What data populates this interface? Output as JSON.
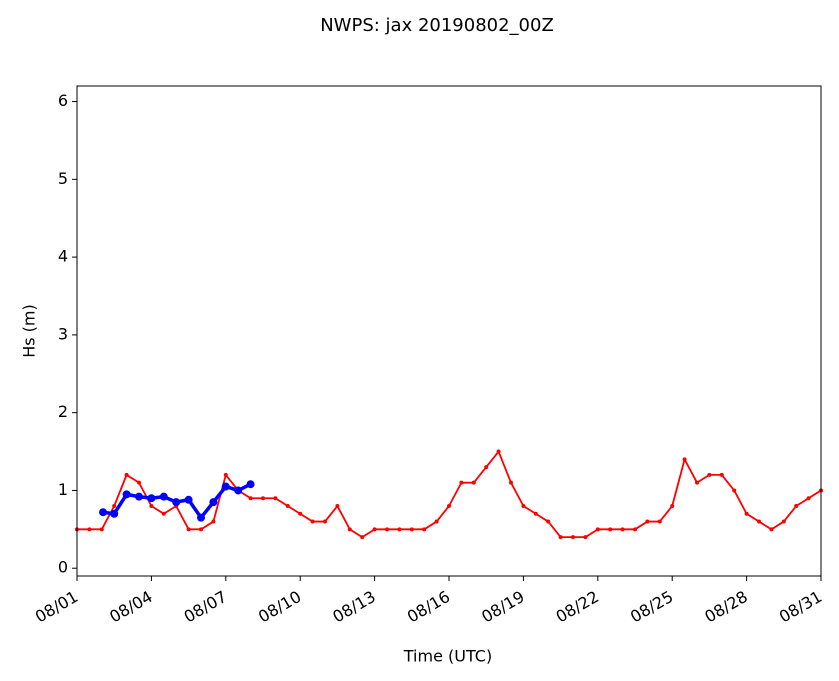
{
  "chart_data": {
    "type": "line",
    "title": "NWPS: jax 20190802_00Z",
    "x_label": "Time (UTC)",
    "y_label": "Hs (m)",
    "xlim": [
      1,
      31
    ],
    "xticks": [
      {
        "value": 1,
        "label": "08/01"
      },
      {
        "value": 4,
        "label": "08/04"
      },
      {
        "value": 7,
        "label": "08/07"
      },
      {
        "value": 10,
        "label": "08/10"
      },
      {
        "value": 13,
        "label": "08/13"
      },
      {
        "value": 16,
        "label": "08/16"
      },
      {
        "value": 19,
        "label": "08/19"
      },
      {
        "value": 22,
        "label": "08/22"
      },
      {
        "value": 25,
        "label": "08/25"
      },
      {
        "value": 28,
        "label": "08/28"
      },
      {
        "value": 31,
        "label": "08/31"
      }
    ],
    "ylim": [
      -0.1,
      6.2
    ],
    "yticks": [
      0,
      1,
      2,
      3,
      4,
      5,
      6
    ],
    "series": [
      {
        "color": "#ff0000",
        "marker_size": 2,
        "x": [
          1,
          1.5,
          2,
          2.5,
          3,
          3.5,
          4,
          4.5,
          5,
          5.5,
          6,
          6.5,
          7,
          7.5,
          8,
          8.5,
          9,
          9.5,
          10,
          10.5,
          11,
          11.5,
          12,
          12.5,
          13,
          13.5,
          14,
          14.5,
          15,
          15.5,
          16,
          16.5,
          17,
          17.5,
          18,
          18.5,
          19,
          19.5,
          20,
          20.5,
          21,
          21.5,
          22,
          22.5,
          23,
          23.5,
          24,
          24.5,
          25,
          25.5,
          26,
          26.5,
          27,
          27.5,
          28,
          28.5,
          29,
          29.5,
          30,
          30.5,
          31
        ],
        "values": [
          0.5,
          0.5,
          0.5,
          0.8,
          1.2,
          1.1,
          0.8,
          0.7,
          0.8,
          0.5,
          0.5,
          0.6,
          1.2,
          1.0,
          0.9,
          0.9,
          0.9,
          0.8,
          0.7,
          0.6,
          0.6,
          0.8,
          0.5,
          0.4,
          0.5,
          0.5,
          0.5,
          0.5,
          0.5,
          0.6,
          0.8,
          1.1,
          1.1,
          1.3,
          1.5,
          1.1,
          0.8,
          0.7,
          0.6,
          0.4,
          0.4,
          0.4,
          0.5,
          0.5,
          0.5,
          0.5,
          0.6,
          0.6,
          0.8,
          1.4,
          1.1,
          1.2,
          1.2,
          1.0,
          0.7,
          0.6,
          0.5,
          0.6,
          0.8,
          0.9,
          1.0
        ]
      },
      {
        "color": "#0000ff",
        "marker_size": 4,
        "x": [
          2.05,
          2.5,
          3,
          3.5,
          4,
          4.5,
          5,
          5.5,
          6,
          6.5,
          7,
          7.5,
          8
        ],
        "values": [
          0.72,
          0.7,
          0.95,
          0.92,
          0.9,
          0.92,
          0.85,
          0.88,
          0.65,
          0.85,
          1.05,
          1.0,
          1.08
        ]
      }
    ]
  }
}
